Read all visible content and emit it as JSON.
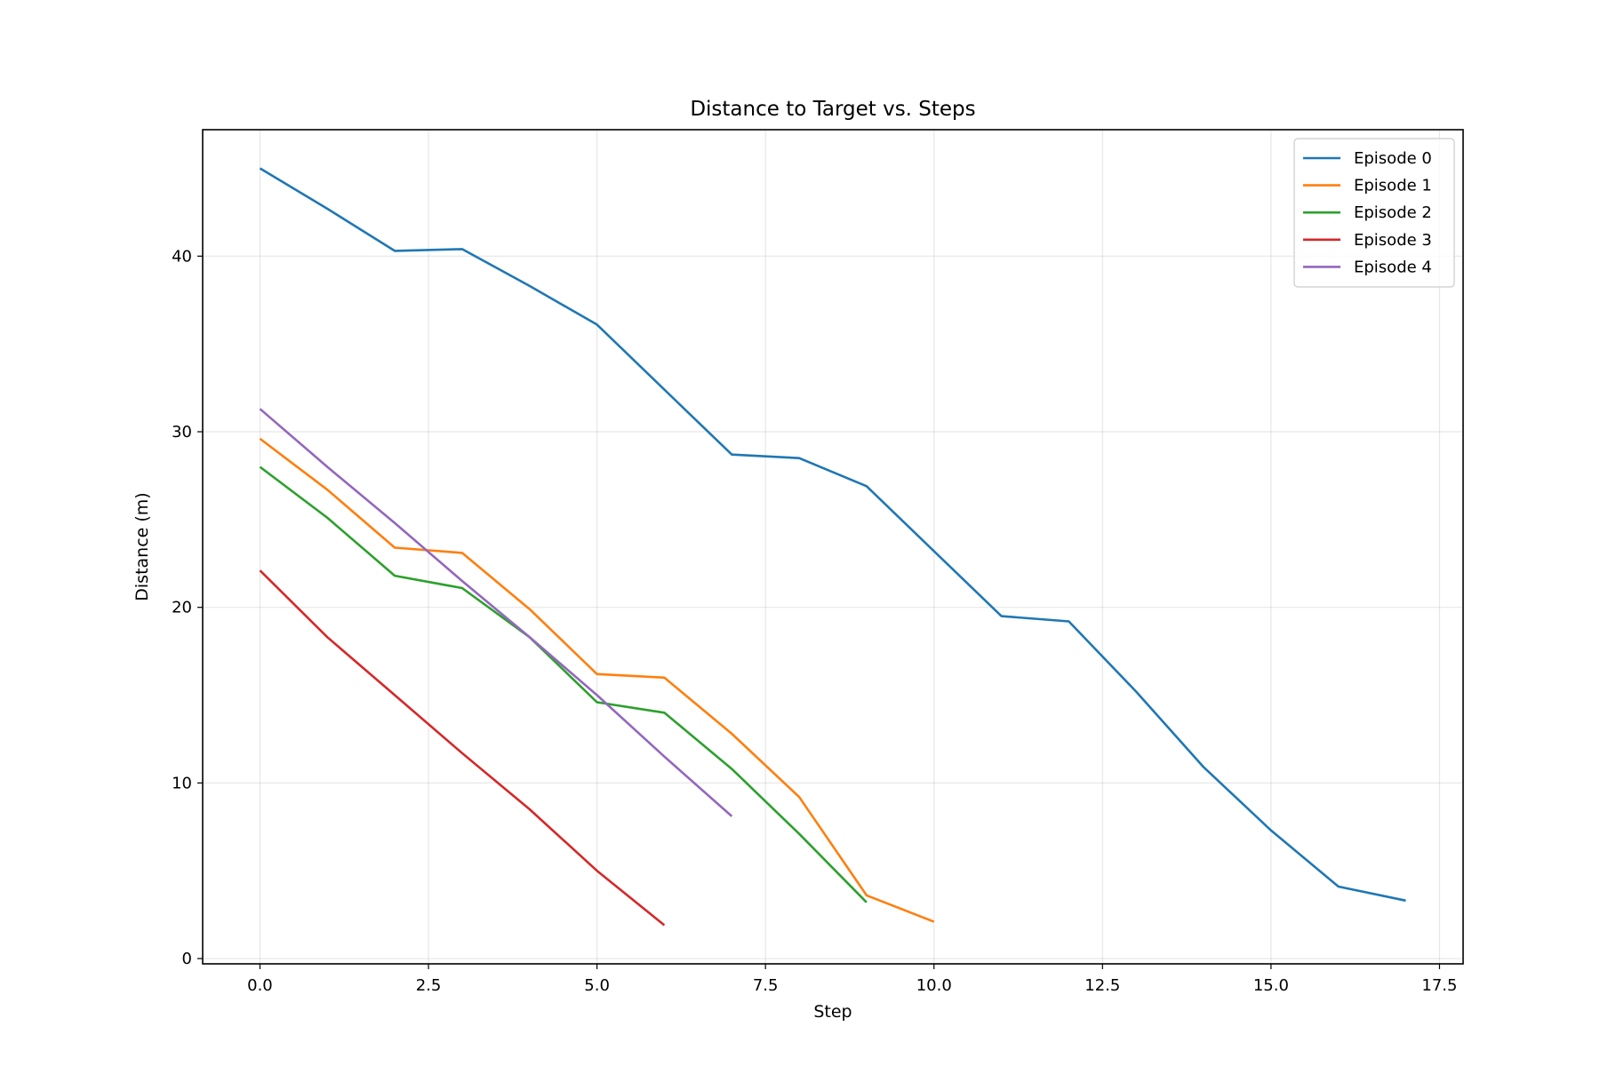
{
  "chart_data": {
    "type": "line",
    "title": "Distance to Target vs. Steps",
    "xlabel": "Step",
    "ylabel": "Distance (m)",
    "xlim": [
      -0.85,
      17.85
    ],
    "ylim": [
      -0.3,
      47.2
    ],
    "x_ticks": [
      0.0,
      2.5,
      5.0,
      7.5,
      10.0,
      12.5,
      15.0,
      17.5
    ],
    "x_tick_labels": [
      "0.0",
      "2.5",
      "5.0",
      "7.5",
      "10.0",
      "12.5",
      "15.0",
      "17.5"
    ],
    "y_ticks": [
      0,
      10,
      20,
      30,
      40
    ],
    "y_tick_labels": [
      "0",
      "10",
      "20",
      "30",
      "40"
    ],
    "grid": true,
    "legend_position": "top-right",
    "series": [
      {
        "name": "Episode 0",
        "color": "#1f77b4",
        "x": [
          0,
          1,
          2,
          3,
          4,
          5,
          6,
          7,
          8,
          9,
          10,
          11,
          12,
          13,
          14,
          15,
          16,
          17
        ],
        "values": [
          45.0,
          42.7,
          40.3,
          40.4,
          38.3,
          36.1,
          32.4,
          28.7,
          28.5,
          26.9,
          23.2,
          19.5,
          19.2,
          15.2,
          10.9,
          7.3,
          4.1,
          3.3
        ]
      },
      {
        "name": "Episode 1",
        "color": "#ff7f0e",
        "x": [
          0,
          1,
          2,
          3,
          4,
          5,
          6,
          7,
          8,
          9,
          10
        ],
        "values": [
          29.6,
          26.7,
          23.4,
          23.1,
          19.9,
          16.2,
          16.0,
          12.8,
          9.2,
          3.6,
          2.1
        ]
      },
      {
        "name": "Episode 2",
        "color": "#2ca02c",
        "x": [
          0,
          1,
          2,
          3,
          4,
          5,
          6,
          7,
          8,
          9
        ],
        "values": [
          28.0,
          25.1,
          21.8,
          21.1,
          18.3,
          14.6,
          14.0,
          10.8,
          7.1,
          3.2
        ]
      },
      {
        "name": "Episode 3",
        "color": "#d62728",
        "x": [
          0,
          1,
          2,
          3,
          4,
          5,
          6
        ],
        "values": [
          22.1,
          18.3,
          15.0,
          11.7,
          8.5,
          5.0,
          1.9
        ]
      },
      {
        "name": "Episode 4",
        "color": "#9467bd",
        "x": [
          0,
          1,
          2,
          3,
          4,
          5,
          6,
          7
        ],
        "values": [
          31.3,
          28.0,
          24.8,
          21.5,
          18.3,
          15.0,
          11.5,
          8.1
        ]
      }
    ]
  }
}
